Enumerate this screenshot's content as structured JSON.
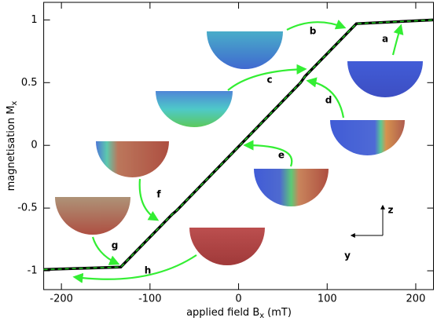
{
  "chart_data": {
    "type": "line",
    "x": [
      -220,
      -133,
      -75,
      -70,
      70,
      75,
      133,
      220
    ],
    "values": [
      -0.99,
      -0.97,
      -0.55,
      -0.52,
      0.5,
      0.55,
      0.97,
      1.0
    ],
    "color": "#000000",
    "dash_color": "#22cc22",
    "xlim": [
      -220,
      220
    ],
    "xticks": [
      -200,
      -100,
      0,
      100,
      200
    ],
    "ylim": [
      -1.15,
      1.14
    ],
    "yticks": [
      -1,
      -0.5,
      0,
      0.5,
      1
    ],
    "xlabel": "applied field B",
    "xlabel_sub": "x",
    "xlabel_unit": "(mT)",
    "ylabel": "magnetisation M",
    "ylabel_sub": "x",
    "annotations": [
      "a",
      "b",
      "c",
      "d",
      "e",
      "f",
      "g",
      "h"
    ],
    "axes_labels": [
      "z",
      "y"
    ]
  }
}
